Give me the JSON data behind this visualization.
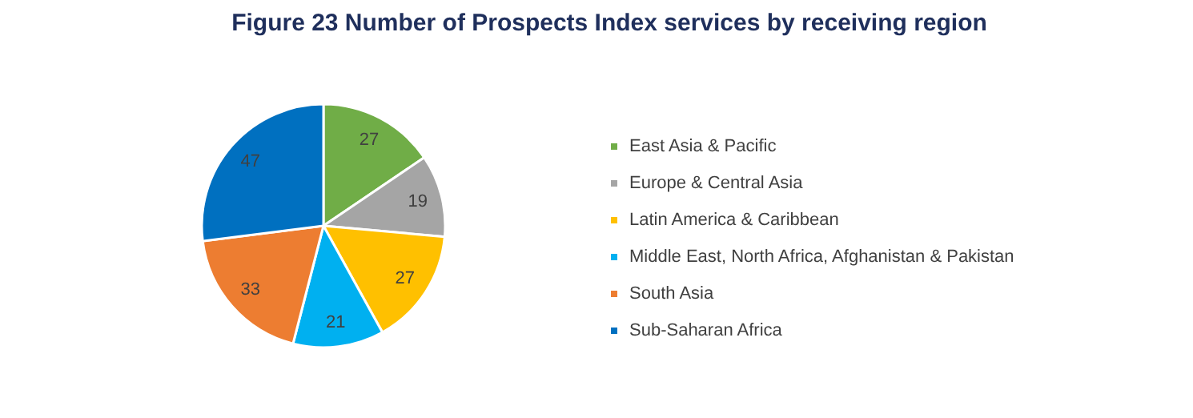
{
  "chart_data": {
    "type": "pie",
    "title": "Figure 23 Number of Prospects Index services by receiving region",
    "categories": [
      "East Asia & Pacific",
      "Europe & Central Asia",
      "Latin America & Caribbean",
      "Middle East, North Africa, Afghanistan & Pakistan",
      "South Asia",
      "Sub-Saharan Africa"
    ],
    "values": [
      27,
      19,
      27,
      21,
      33,
      47
    ],
    "colors": [
      "#70ad47",
      "#a5a5a5",
      "#ffc000",
      "#00b0f0",
      "#ed7d31",
      "#0070c0"
    ],
    "data_labels": true,
    "legend": "right"
  }
}
